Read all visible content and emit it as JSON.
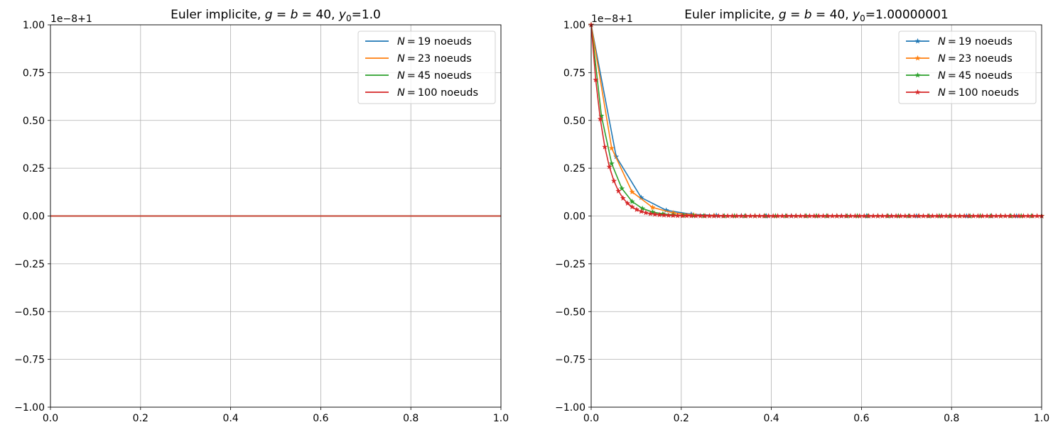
{
  "chart_data": [
    {
      "type": "line",
      "title": {
        "prefix": "Euler implicite, ",
        "g": "g",
        "eq1": " = ",
        "b": "b",
        "eq2": " = 40, ",
        "y": "y",
        "sub": "0",
        "suffix": "=1.0"
      },
      "offset_text": "1e−8+1",
      "y_units": "deviation from 1, in units of 1e-8",
      "xlim": [
        0,
        1
      ],
      "ylim": [
        -1,
        1
      ],
      "xticks": [
        "0.0",
        "0.2",
        "0.4",
        "0.6",
        "0.8",
        "1.0"
      ],
      "yticks": [
        "−1.00",
        "−0.75",
        "−0.50",
        "−0.25",
        "0.00",
        "0.25",
        "0.50",
        "0.75",
        "1.00"
      ],
      "grid": true,
      "legend": "top-right",
      "markers": false,
      "series": [
        {
          "name": "N",
          "label": "19 noeuds",
          "nodes": 19,
          "color": "#1f77b4",
          "constant": 0
        },
        {
          "name": "N",
          "label": "23 noeuds",
          "nodes": 23,
          "color": "#ff7f0e",
          "constant": 0
        },
        {
          "name": "N",
          "label": "45 noeuds",
          "nodes": 45,
          "color": "#2ca02c",
          "constant": 0
        },
        {
          "name": "N",
          "label": "100 noeuds",
          "nodes": 100,
          "color": "#d62728",
          "constant": 0
        }
      ]
    },
    {
      "type": "line",
      "title": {
        "prefix": "Euler implicite, ",
        "g": "g",
        "eq1": " = ",
        "b": "b",
        "eq2": " = 40, ",
        "y": "y",
        "sub": "0",
        "suffix": "=1.00000001"
      },
      "offset_text": "1e−8+1",
      "y_units": "deviation from 1, in units of 1e-8",
      "xlim": [
        0,
        1
      ],
      "ylim": [
        -1,
        1
      ],
      "xticks": [
        "0.0",
        "0.2",
        "0.4",
        "0.6",
        "0.8",
        "1.0"
      ],
      "yticks": [
        "−1.00",
        "−0.75",
        "−0.50",
        "−0.25",
        "0.00",
        "0.25",
        "0.50",
        "0.75",
        "1.00"
      ],
      "grid": true,
      "legend": "top-right",
      "markers": true,
      "series": [
        {
          "name": "N",
          "label": "19 noeuds",
          "nodes": 19,
          "color": "#1f77b4",
          "values": [
            1,
            0.3103,
            0.0963,
            0.0299,
            0.0093,
            0.0029,
            0.0009,
            0.0003,
            0.0001,
            0,
            0,
            0,
            0,
            0,
            0,
            0,
            0,
            0,
            0
          ]
        },
        {
          "name": "N",
          "label": "23 noeuds",
          "nodes": 23,
          "color": "#ff7f0e",
          "values": [
            1,
            0.3548,
            0.1259,
            0.0447,
            0.0159,
            0.0056,
            0.002,
            0.0007,
            0.0003,
            0.0001,
            0,
            0,
            0,
            0,
            0,
            0,
            0,
            0,
            0,
            0,
            0,
            0,
            0
          ]
        },
        {
          "name": "N",
          "label": "45 noeuds",
          "nodes": 45,
          "color": "#2ca02c",
          "values": [
            1,
            0.5238,
            0.2744,
            0.1437,
            0.0753,
            0.0394,
            0.0207,
            0.0108,
            0.0057,
            0.003,
            0.0016,
            0.0008,
            0.0004,
            0.0002,
            0.0001,
            0,
            0,
            0,
            0,
            0,
            0,
            0,
            0,
            0,
            0,
            0,
            0,
            0,
            0,
            0,
            0,
            0,
            0,
            0,
            0,
            0,
            0,
            0,
            0,
            0,
            0,
            0,
            0,
            0,
            0
          ]
        },
        {
          "name": "N",
          "label": "100 noeuds",
          "nodes": 100,
          "color": "#d62728",
          "values": [
            1,
            0.7122,
            0.5072,
            0.3613,
            0.2573,
            0.1833,
            0.1305,
            0.093,
            0.0662,
            0.0472,
            0.0336,
            0.0239,
            0.017,
            0.0121,
            0.0086,
            0.0062,
            0.0044,
            0.0031,
            0.0022,
            0.0016,
            0.0011,
            0.0008,
            0.0006,
            0.0004,
            0.0003,
            0.0002,
            0.0001,
            0.0001,
            0,
            0,
            0,
            0,
            0,
            0,
            0,
            0,
            0,
            0,
            0,
            0,
            0,
            0,
            0,
            0,
            0,
            0,
            0,
            0,
            0,
            0,
            0,
            0,
            0,
            0,
            0,
            0,
            0,
            0,
            0,
            0,
            0,
            0,
            0,
            0,
            0,
            0,
            0,
            0,
            0,
            0,
            0,
            0,
            0,
            0,
            0,
            0,
            0,
            0,
            0,
            0,
            0,
            0,
            0,
            0,
            0,
            0,
            0,
            0,
            0,
            0,
            0,
            0,
            0,
            0,
            0,
            0,
            0,
            0,
            0,
            0
          ]
        }
      ]
    }
  ]
}
